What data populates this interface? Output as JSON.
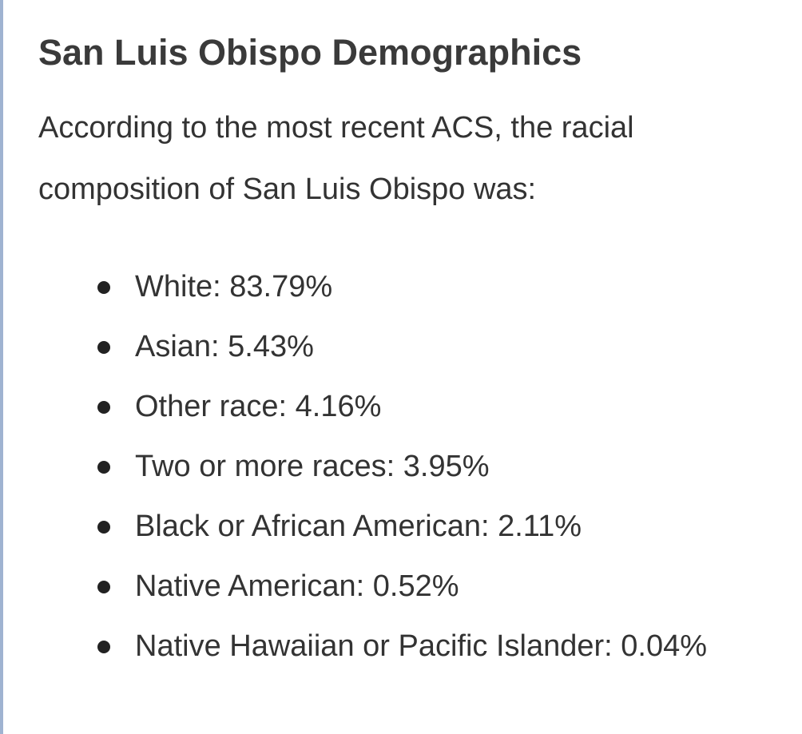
{
  "header": {
    "title": "San Luis Obispo Demographics"
  },
  "intro": "According to the most recent ACS, the racial composition of San Luis Obispo was:",
  "list": {
    "items": [
      "White: 83.79%",
      "Asian: 5.43%",
      "Other race: 4.16%",
      "Two or more races: 3.95%",
      "Black or African American: 2.11%",
      "Native American: 0.52%",
      "Native Hawaiian or Pacific Islander: 0.04%"
    ]
  }
}
